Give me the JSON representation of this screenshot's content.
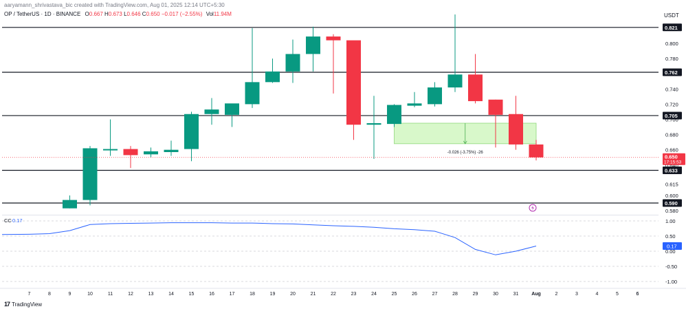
{
  "header": {
    "credit": "aaryamann_shrivastava_bic created with TradingView.com, Aug 01, 2025 12:14 UTC+5:30",
    "symbol": "OP / TetherUS · 1D · BINANCE",
    "o_label": "O",
    "o_value": "0.667",
    "h_label": "H",
    "h_value": "0.673",
    "l_label": "L",
    "l_value": "0.646",
    "c_label": "C",
    "c_value": "0.650",
    "change": "−0.017 (−2.55%)",
    "vol_label": "Vol",
    "vol_value": "11.94M",
    "currency": "USDT"
  },
  "branding": {
    "logo_mark": "17",
    "name": "TradingView"
  },
  "colors": {
    "up": "#089981",
    "down": "#f23645",
    "level_line": "#131722",
    "measure_fill": "#c8f5b4",
    "measure_border": "#8fd87a",
    "cc_line": "#2962ff",
    "price_tag": "#f23645",
    "level_tag": "#131722",
    "flash_icon": "#b22fb0"
  },
  "chart_data": {
    "type": "candlestick",
    "price_scale": {
      "min": 0.574,
      "max": 0.838
    },
    "x": [
      "6",
      "7",
      "8",
      "9",
      "10",
      "11",
      "12",
      "13",
      "14",
      "15",
      "16",
      "17",
      "18",
      "19",
      "20",
      "21",
      "22",
      "23",
      "24",
      "25",
      "26",
      "27",
      "28",
      "29",
      "30",
      "31",
      "Aug",
      "2",
      "3",
      "4",
      "5",
      "6"
    ],
    "candles": [
      {
        "day": "9",
        "o": 0.583,
        "h": 0.6,
        "l": 0.583,
        "c": 0.594
      },
      {
        "day": "10",
        "o": 0.594,
        "h": 0.665,
        "l": 0.587,
        "c": 0.662
      },
      {
        "day": "11",
        "o": 0.66,
        "h": 0.7,
        "l": 0.652,
        "c": 0.661
      },
      {
        "day": "12",
        "o": 0.661,
        "h": 0.665,
        "l": 0.636,
        "c": 0.653
      },
      {
        "day": "13",
        "o": 0.654,
        "h": 0.663,
        "l": 0.65,
        "c": 0.658
      },
      {
        "day": "14",
        "o": 0.657,
        "h": 0.672,
        "l": 0.652,
        "c": 0.66
      },
      {
        "day": "15",
        "o": 0.661,
        "h": 0.71,
        "l": 0.645,
        "c": 0.707
      },
      {
        "day": "16",
        "o": 0.707,
        "h": 0.728,
        "l": 0.693,
        "c": 0.713
      },
      {
        "day": "17",
        "o": 0.706,
        "h": 0.72,
        "l": 0.69,
        "c": 0.721
      },
      {
        "day": "18",
        "o": 0.72,
        "h": 0.82,
        "l": 0.715,
        "c": 0.749
      },
      {
        "day": "19",
        "o": 0.749,
        "h": 0.78,
        "l": 0.748,
        "c": 0.763
      },
      {
        "day": "20",
        "o": 0.763,
        "h": 0.805,
        "l": 0.748,
        "c": 0.786
      },
      {
        "day": "21",
        "o": 0.786,
        "h": 0.822,
        "l": 0.763,
        "c": 0.809
      },
      {
        "day": "22",
        "o": 0.809,
        "h": 0.812,
        "l": 0.734,
        "c": 0.804
      },
      {
        "day": "23",
        "o": 0.804,
        "h": 0.803,
        "l": 0.673,
        "c": 0.693
      },
      {
        "day": "24",
        "o": 0.693,
        "h": 0.731,
        "l": 0.648,
        "c": 0.695
      },
      {
        "day": "25",
        "o": 0.694,
        "h": 0.72,
        "l": 0.69,
        "c": 0.719
      },
      {
        "day": "26",
        "o": 0.718,
        "h": 0.736,
        "l": 0.716,
        "c": 0.721
      },
      {
        "day": "27",
        "o": 0.72,
        "h": 0.749,
        "l": 0.717,
        "c": 0.742
      },
      {
        "day": "28",
        "o": 0.742,
        "h": 0.838,
        "l": 0.736,
        "c": 0.759
      },
      {
        "day": "29",
        "o": 0.759,
        "h": 0.786,
        "l": 0.721,
        "c": 0.724
      },
      {
        "day": "30",
        "o": 0.726,
        "h": 0.726,
        "l": 0.663,
        "c": 0.706
      },
      {
        "day": "31",
        "o": 0.707,
        "h": 0.731,
        "l": 0.66,
        "c": 0.667
      },
      {
        "day": "Aug",
        "o": 0.667,
        "h": 0.673,
        "l": 0.646,
        "c": 0.65
      }
    ],
    "horizontal_levels": [
      0.821,
      0.762,
      0.705,
      0.633,
      0.59
    ],
    "y_ticks": [
      0.8,
      0.78,
      0.76,
      0.74,
      0.72,
      0.7,
      0.68,
      0.66,
      0.64,
      0.615,
      0.6,
      0.58
    ],
    "current_price": {
      "value": 0.65,
      "label": "0.650",
      "countdown": "17:15:53"
    },
    "measure_box": {
      "from_day": "25",
      "to_day": "Aug",
      "top": 0.695,
      "bottom": 0.668,
      "label": "-0.026 (-3.75%) -26"
    },
    "indicator": {
      "name": "CC",
      "value_label": "0.17",
      "scale": {
        "min": -1.0,
        "max": 1.0
      },
      "ticks": [
        "1.00",
        "0.50",
        "0.00",
        "-0.50",
        "-1.00"
      ],
      "values": [
        {
          "day": "6",
          "v": 0.55
        },
        {
          "day": "7",
          "v": 0.56
        },
        {
          "day": "8",
          "v": 0.58
        },
        {
          "day": "9",
          "v": 0.68
        },
        {
          "day": "10",
          "v": 0.88
        },
        {
          "day": "11",
          "v": 0.91
        },
        {
          "day": "12",
          "v": 0.92
        },
        {
          "day": "13",
          "v": 0.93
        },
        {
          "day": "14",
          "v": 0.94
        },
        {
          "day": "15",
          "v": 0.94
        },
        {
          "day": "16",
          "v": 0.94
        },
        {
          "day": "17",
          "v": 0.93
        },
        {
          "day": "18",
          "v": 0.93
        },
        {
          "day": "19",
          "v": 0.91
        },
        {
          "day": "20",
          "v": 0.9
        },
        {
          "day": "21",
          "v": 0.87
        },
        {
          "day": "22",
          "v": 0.84
        },
        {
          "day": "23",
          "v": 0.82
        },
        {
          "day": "24",
          "v": 0.79
        },
        {
          "day": "25",
          "v": 0.74
        },
        {
          "day": "26",
          "v": 0.71
        },
        {
          "day": "27",
          "v": 0.66
        },
        {
          "day": "28",
          "v": 0.45
        },
        {
          "day": "29",
          "v": 0.06
        },
        {
          "day": "30",
          "v": -0.12
        },
        {
          "day": "31",
          "v": 0.0
        },
        {
          "day": "Aug",
          "v": 0.17
        }
      ]
    }
  }
}
